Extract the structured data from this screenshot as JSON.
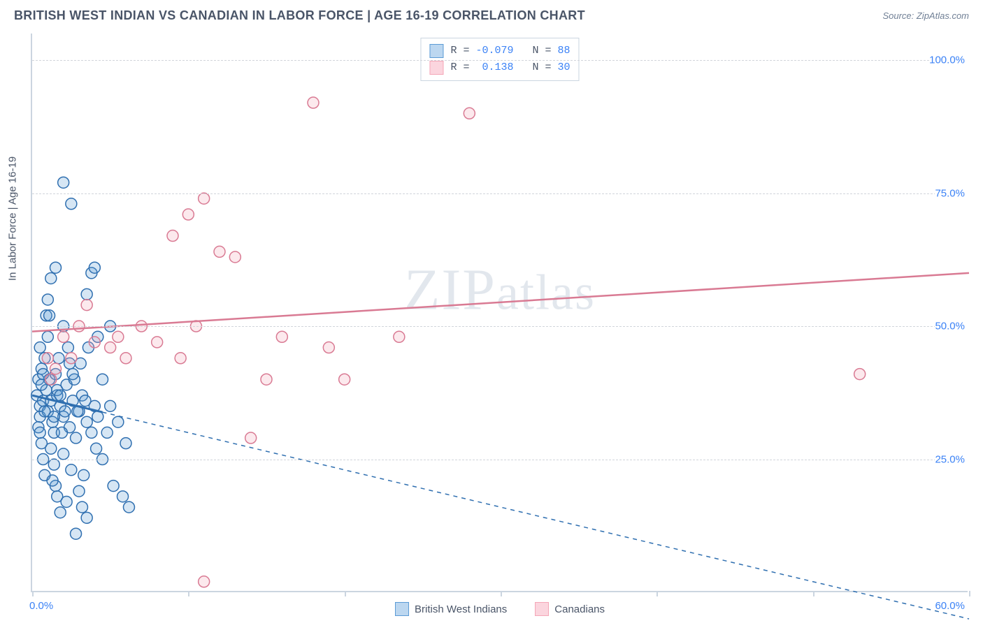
{
  "header": {
    "title": "BRITISH WEST INDIAN VS CANADIAN IN LABOR FORCE | AGE 16-19 CORRELATION CHART",
    "source": "Source: ZipAtlas.com"
  },
  "watermark": {
    "pre": "ZIP",
    "post": "atlas"
  },
  "chart": {
    "type": "scatter",
    "ylabel": "In Labor Force | Age 16-19",
    "xlim": [
      0,
      60
    ],
    "ylim": [
      0,
      105
    ],
    "x_ticks": [
      0,
      10,
      20,
      30,
      40,
      50,
      60
    ],
    "x_tick_labels": {
      "0": "0.0%",
      "60": "60.0%"
    },
    "y_gridlines": [
      25,
      50,
      75,
      100
    ],
    "y_tick_labels": {
      "25": "25.0%",
      "50": "50.0%",
      "75": "75.0%",
      "100": "100.0%"
    },
    "background_color": "#ffffff",
    "grid_color": "#d1d5db",
    "axis_color": "#cbd5e0",
    "tick_label_color": "#3b82f6",
    "label_color": "#4a5568",
    "marker_radius": 8,
    "marker_stroke_width": 1.5,
    "marker_fill_opacity": 0.25,
    "series": [
      {
        "name": "British West Indians",
        "color": "#5b9bd5",
        "stroke": "#2f6fb0",
        "R": "-0.079",
        "N": "88",
        "trend": {
          "y_at_x0": 37,
          "y_at_xmax": -5,
          "solid_until_x": 4.5,
          "dash": "6,6",
          "solid_width": 3,
          "dash_width": 1.5
        },
        "points": [
          [
            0.3,
            37
          ],
          [
            0.4,
            40
          ],
          [
            0.5,
            35
          ],
          [
            0.6,
            42
          ],
          [
            0.5,
            33
          ],
          [
            0.7,
            36
          ],
          [
            0.8,
            44
          ],
          [
            0.4,
            31
          ],
          [
            0.9,
            38
          ],
          [
            0.5,
            46
          ],
          [
            1.0,
            34
          ],
          [
            1.1,
            40
          ],
          [
            0.6,
            28
          ],
          [
            1.2,
            36
          ],
          [
            1.3,
            32
          ],
          [
            0.7,
            25
          ],
          [
            1.4,
            30
          ],
          [
            1.5,
            41
          ],
          [
            0.8,
            22
          ],
          [
            1.6,
            37
          ],
          [
            1.0,
            48
          ],
          [
            1.8,
            35
          ],
          [
            2.0,
            33
          ],
          [
            1.2,
            27
          ],
          [
            2.2,
            39
          ],
          [
            1.4,
            24
          ],
          [
            2.4,
            31
          ],
          [
            2.6,
            36
          ],
          [
            1.5,
            20
          ],
          [
            2.8,
            29
          ],
          [
            3.0,
            34
          ],
          [
            1.6,
            18
          ],
          [
            3.2,
            37
          ],
          [
            1.8,
            15
          ],
          [
            3.5,
            32
          ],
          [
            2.0,
            50
          ],
          [
            3.8,
            30
          ],
          [
            4.0,
            35
          ],
          [
            2.2,
            17
          ],
          [
            4.2,
            33
          ],
          [
            4.5,
            40
          ],
          [
            2.0,
            77
          ],
          [
            4.8,
            30
          ],
          [
            2.5,
            73
          ],
          [
            5.0,
            35
          ],
          [
            1.0,
            55
          ],
          [
            5.5,
            32
          ],
          [
            3.8,
            60
          ],
          [
            6.0,
            28
          ],
          [
            4.0,
            61
          ],
          [
            2.5,
            23
          ],
          [
            3.5,
            56
          ],
          [
            3.0,
            19
          ],
          [
            5.0,
            50
          ],
          [
            3.2,
            16
          ],
          [
            4.2,
            48
          ],
          [
            3.5,
            14
          ],
          [
            1.2,
            59
          ],
          [
            2.8,
            11
          ],
          [
            0.9,
            52
          ],
          [
            1.5,
            61
          ],
          [
            4.5,
            25
          ],
          [
            2.0,
            26
          ],
          [
            5.2,
            20
          ],
          [
            2.7,
            40
          ],
          [
            5.8,
            18
          ],
          [
            3.1,
            43
          ],
          [
            6.2,
            16
          ],
          [
            2.3,
            46
          ],
          [
            1.7,
            44
          ],
          [
            0.6,
            39
          ],
          [
            3.3,
            22
          ],
          [
            1.9,
            30
          ],
          [
            4.1,
            27
          ],
          [
            0.8,
            34
          ],
          [
            2.4,
            43
          ],
          [
            1.1,
            52
          ],
          [
            3.6,
            46
          ],
          [
            1.3,
            21
          ],
          [
            2.1,
            34
          ],
          [
            0.7,
            41
          ],
          [
            1.6,
            38
          ],
          [
            2.9,
            34
          ],
          [
            0.5,
            30
          ],
          [
            1.4,
            33
          ],
          [
            2.6,
            41
          ],
          [
            3.4,
            36
          ],
          [
            1.8,
            37
          ]
        ]
      },
      {
        "name": "Canadians",
        "color": "#f4a6b7",
        "stroke": "#d97a93",
        "R": "0.138",
        "N": "30",
        "trend": {
          "y_at_x0": 49,
          "y_at_xmax": 60,
          "solid_until_x": 60,
          "dash": "",
          "solid_width": 2.5,
          "dash_width": 0
        },
        "points": [
          [
            1.0,
            44
          ],
          [
            1.2,
            40
          ],
          [
            1.5,
            42
          ],
          [
            2.0,
            48
          ],
          [
            2.5,
            44
          ],
          [
            3.0,
            50
          ],
          [
            3.5,
            54
          ],
          [
            4.0,
            47
          ],
          [
            5.0,
            46
          ],
          [
            5.5,
            48
          ],
          [
            6.0,
            44
          ],
          [
            7.0,
            50
          ],
          [
            8.0,
            47
          ],
          [
            9.0,
            67
          ],
          [
            9.5,
            44
          ],
          [
            10.0,
            71
          ],
          [
            11.0,
            74
          ],
          [
            12.0,
            64
          ],
          [
            13.0,
            63
          ],
          [
            14.0,
            29
          ],
          [
            15.0,
            40
          ],
          [
            16.0,
            48
          ],
          [
            18.0,
            92
          ],
          [
            19.0,
            46
          ],
          [
            20.0,
            40
          ],
          [
            23.5,
            48
          ],
          [
            28.0,
            90
          ],
          [
            11.0,
            2
          ],
          [
            53.0,
            41
          ],
          [
            10.5,
            50
          ]
        ]
      }
    ],
    "legend_top": {
      "rows": [
        {
          "swatch_fill": "#bcd7f0",
          "swatch_stroke": "#5b9bd5",
          "r_label": "R =",
          "r_value": "-0.079",
          "n_label": "N =",
          "n_value": "88"
        },
        {
          "swatch_fill": "#fbd5de",
          "swatch_stroke": "#f4a6b7",
          "r_label": "R =",
          "r_value": " 0.138",
          "n_label": "N =",
          "n_value": "30"
        }
      ]
    },
    "legend_bottom": [
      {
        "swatch_fill": "#bcd7f0",
        "swatch_stroke": "#5b9bd5",
        "label": "British West Indians"
      },
      {
        "swatch_fill": "#fbd5de",
        "swatch_stroke": "#f4a6b7",
        "label": "Canadians"
      }
    ]
  }
}
